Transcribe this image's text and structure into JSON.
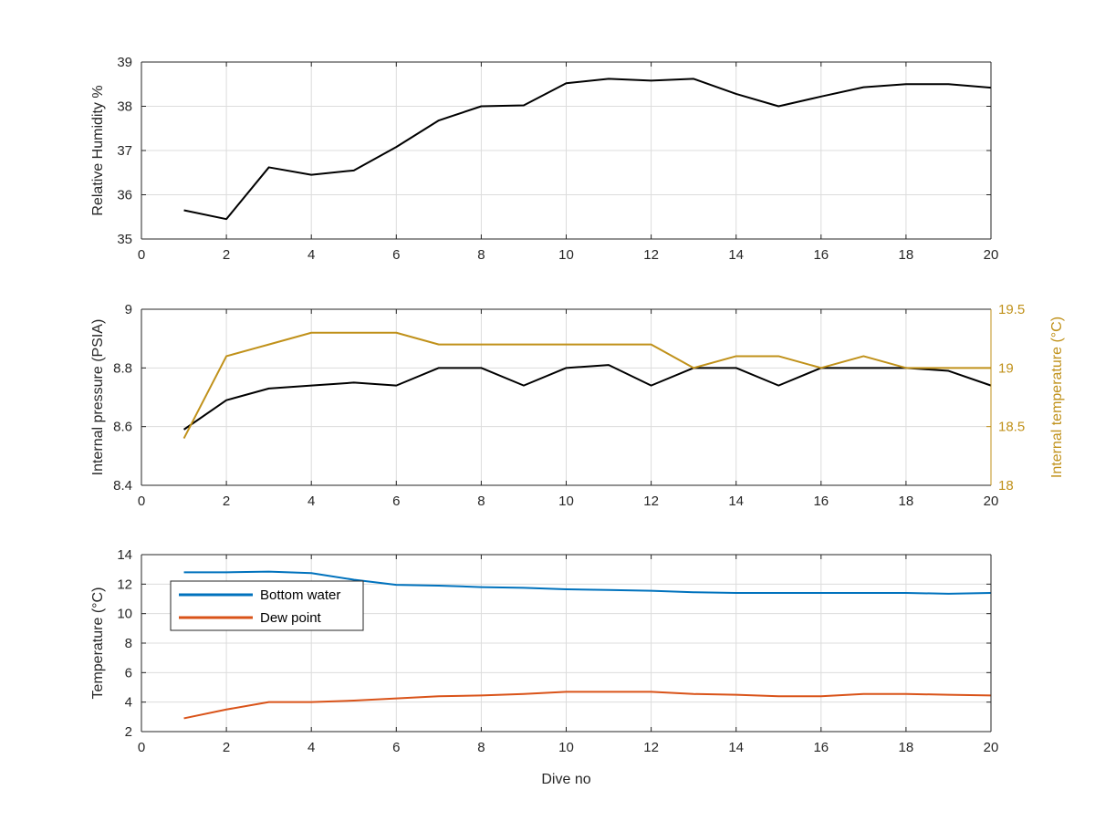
{
  "chart_data": [
    {
      "type": "line",
      "xlabel": "",
      "ylabel": "Relative Humidity %",
      "xlim": [
        0,
        20
      ],
      "ylim": [
        35,
        39
      ],
      "xticks": [
        0,
        2,
        4,
        6,
        8,
        10,
        12,
        14,
        16,
        18,
        20
      ],
      "yticks": [
        35,
        36,
        37,
        38,
        39
      ],
      "grid": true,
      "series": [
        {
          "name": "",
          "color": "#000000",
          "x": [
            1,
            2,
            3,
            4,
            5,
            6,
            7,
            8,
            9,
            10,
            11,
            12,
            13,
            14,
            15,
            16,
            17,
            18,
            19,
            20
          ],
          "y": [
            35.65,
            35.45,
            36.62,
            36.45,
            36.55,
            37.08,
            37.68,
            38.0,
            38.02,
            38.52,
            38.62,
            38.58,
            38.62,
            38.28,
            38.0,
            38.22,
            38.43,
            38.5,
            38.5,
            38.42
          ]
        }
      ]
    },
    {
      "type": "line",
      "xlabel": "",
      "ylabel": "Internal pressure (PSIA)",
      "y2label": "Internal temperature (°C)",
      "xlim": [
        0,
        20
      ],
      "ylim": [
        8.4,
        9
      ],
      "y2lim": [
        18,
        19.5
      ],
      "xticks": [
        0,
        2,
        4,
        6,
        8,
        10,
        12,
        14,
        16,
        18,
        20
      ],
      "yticks": [
        8.4,
        8.6,
        8.8,
        9
      ],
      "ytick_labels": [
        "8.4",
        "8.6",
        "8.8",
        "9"
      ],
      "y2ticks": [
        18,
        18.5,
        19,
        19.5
      ],
      "y2tick_labels": [
        "18",
        "18.5",
        "19",
        "19.5"
      ],
      "y2color": "#c0911a",
      "grid": true,
      "series": [
        {
          "name": "",
          "axis": "left",
          "color": "#000000",
          "x": [
            1,
            2,
            3,
            4,
            5,
            6,
            7,
            8,
            9,
            10,
            11,
            12,
            13,
            14,
            15,
            16,
            17,
            18,
            19,
            20
          ],
          "y": [
            8.59,
            8.69,
            8.73,
            8.74,
            8.75,
            8.74,
            8.8,
            8.8,
            8.74,
            8.8,
            8.81,
            8.74,
            8.8,
            8.8,
            8.74,
            8.8,
            8.8,
            8.8,
            8.79,
            8.74
          ]
        },
        {
          "name": "",
          "axis": "right",
          "color": "#c0911a",
          "x": [
            1,
            2,
            3,
            4,
            5,
            6,
            7,
            8,
            9,
            10,
            11,
            12,
            13,
            14,
            15,
            16,
            17,
            18,
            19,
            20
          ],
          "y": [
            18.4,
            19.1,
            19.2,
            19.3,
            19.3,
            19.3,
            19.2,
            19.2,
            19.2,
            19.2,
            19.2,
            19.2,
            19.0,
            19.1,
            19.1,
            19.0,
            19.1,
            19.0,
            19.0,
            19.0
          ]
        }
      ]
    },
    {
      "type": "line",
      "xlabel": "Dive no",
      "ylabel": "Temperature (°C)",
      "xlim": [
        0,
        20
      ],
      "ylim": [
        2,
        14
      ],
      "xticks": [
        0,
        2,
        4,
        6,
        8,
        10,
        12,
        14,
        16,
        18,
        20
      ],
      "yticks": [
        2,
        4,
        6,
        8,
        10,
        12,
        14
      ],
      "grid": true,
      "legend": "top-left",
      "series": [
        {
          "name": "Bottom water",
          "color": "#0072bd",
          "x": [
            1,
            2,
            3,
            4,
            5,
            6,
            7,
            8,
            9,
            10,
            11,
            12,
            13,
            14,
            15,
            16,
            17,
            18,
            19,
            20
          ],
          "y": [
            12.8,
            12.8,
            12.85,
            12.75,
            12.3,
            11.95,
            11.9,
            11.8,
            11.75,
            11.65,
            11.6,
            11.55,
            11.45,
            11.4,
            11.4,
            11.4,
            11.4,
            11.4,
            11.35,
            11.4
          ]
        },
        {
          "name": "Dew point",
          "color": "#d95319",
          "x": [
            1,
            2,
            3,
            4,
            5,
            6,
            7,
            8,
            9,
            10,
            11,
            12,
            13,
            14,
            15,
            16,
            17,
            18,
            19,
            20
          ],
          "y": [
            2.9,
            3.5,
            4.0,
            4.0,
            4.1,
            4.25,
            4.4,
            4.45,
            4.55,
            4.7,
            4.7,
            4.7,
            4.55,
            4.5,
            4.4,
            4.4,
            4.55,
            4.55,
            4.5,
            4.45
          ]
        }
      ]
    }
  ]
}
